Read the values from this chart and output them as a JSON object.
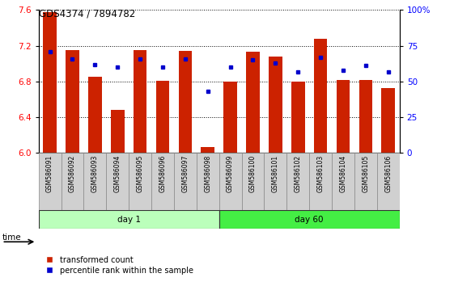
{
  "title": "GDS4374 / 7894782",
  "samples": [
    "GSM586091",
    "GSM586092",
    "GSM586093",
    "GSM586094",
    "GSM586095",
    "GSM586096",
    "GSM586097",
    "GSM586098",
    "GSM586099",
    "GSM586100",
    "GSM586101",
    "GSM586102",
    "GSM586103",
    "GSM586104",
    "GSM586105",
    "GSM586106"
  ],
  "transformed_count": [
    7.58,
    7.15,
    6.85,
    6.48,
    7.15,
    6.81,
    7.14,
    6.07,
    6.8,
    7.13,
    7.08,
    6.8,
    7.28,
    6.82,
    6.82,
    6.73
  ],
  "percentile_rank": [
    71,
    66,
    62,
    60,
    66,
    60,
    66,
    43,
    60,
    65,
    63,
    57,
    67,
    58,
    61,
    57
  ],
  "bar_color": "#cc2200",
  "dot_color": "#0000cc",
  "y_min": 6.0,
  "y_max": 7.6,
  "y_ticks_left": [
    6.0,
    6.4,
    6.8,
    7.2,
    7.6
  ],
  "y_ticks_right": [
    0,
    25,
    50,
    75,
    100
  ],
  "day1_count": 8,
  "day60_count": 8,
  "day1_label": "day 1",
  "day60_label": "day 60",
  "day1_color": "#bbffbb",
  "day60_color": "#44ee44",
  "xlabel_area_color": "#d0d0d0",
  "legend_red_label": "transformed count",
  "legend_blue_label": "percentile rank within the sample",
  "time_label": "time",
  "bar_width": 0.6,
  "figsize": [
    5.61,
    3.54
  ],
  "dpi": 100
}
